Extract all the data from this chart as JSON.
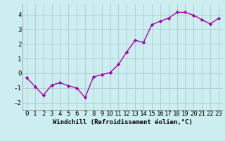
{
  "x": [
    0,
    1,
    2,
    3,
    4,
    5,
    6,
    7,
    8,
    9,
    10,
    11,
    12,
    13,
    14,
    15,
    16,
    17,
    18,
    19,
    20,
    21,
    22,
    23
  ],
  "y": [
    -0.3,
    -0.9,
    -1.5,
    -0.8,
    -0.65,
    -0.85,
    -1.0,
    -1.65,
    -0.25,
    -0.1,
    0.05,
    0.6,
    1.45,
    2.25,
    2.1,
    3.3,
    3.55,
    3.75,
    4.15,
    4.15,
    3.95,
    3.65,
    3.35,
    3.75
  ],
  "line_color": "#aa00aa",
  "marker": "D",
  "marker_size": 2.2,
  "bg_color": "#cceef0",
  "grid_color": "#aacccc",
  "xlabel": "Windchill (Refroidissement éolien,°C)",
  "xlim": [
    -0.5,
    23.5
  ],
  "ylim": [
    -2.5,
    4.7
  ],
  "yticks": [
    -2,
    -1,
    0,
    1,
    2,
    3,
    4
  ],
  "xticks": [
    0,
    1,
    2,
    3,
    4,
    5,
    6,
    7,
    8,
    9,
    10,
    11,
    12,
    13,
    14,
    15,
    16,
    17,
    18,
    19,
    20,
    21,
    22,
    23
  ],
  "xlabel_fontsize": 6.5,
  "tick_fontsize": 6.5,
  "line_width": 1.0
}
